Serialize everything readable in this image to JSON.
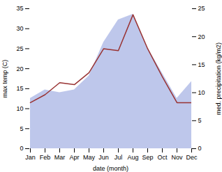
{
  "chart_data": {
    "type": "line",
    "xlabel": "date (month)",
    "ylabel": "max temp (C)",
    "y2label": "med. precipitation (kg/m2)",
    "categories": [
      "Jan",
      "Feb",
      "Mar",
      "Apr",
      "May",
      "Jun",
      "Jul",
      "Aug",
      "Sep",
      "Oct",
      "Nov",
      "Dec"
    ],
    "series": [
      {
        "type": "area",
        "color": "#b3bde8",
        "axis": "y2",
        "values": [
          9.0,
          10.5,
          10.0,
          10.5,
          13.0,
          19.0,
          23.0,
          24.0,
          18.0,
          13.5,
          9.0,
          12.0
        ]
      },
      {
        "type": "line",
        "color": "#993333",
        "values": [
          11.5,
          13.5,
          16.5,
          16.0,
          19.0,
          25.0,
          24.5,
          33.5,
          25.0,
          18.0,
          11.5,
          11.5
        ]
      }
    ],
    "ylim": [
      0,
      35
    ],
    "yticks": [
      0,
      5,
      10,
      15,
      20,
      25,
      30,
      35
    ],
    "y2lim": [
      0,
      25
    ],
    "y2ticks": [
      0,
      5,
      10,
      15,
      20,
      25
    ]
  }
}
